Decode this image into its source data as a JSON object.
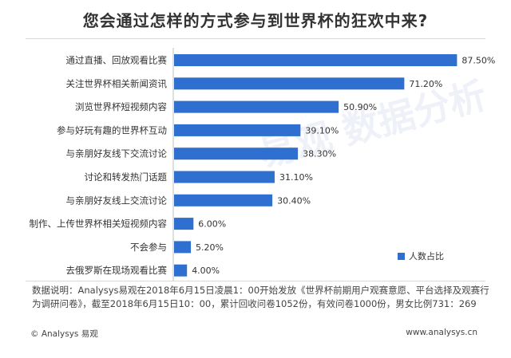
{
  "title": "您会通过怎样的方式参与到世界杯的狂欢中来?",
  "chart_data": {
    "type": "bar",
    "orientation": "horizontal",
    "categories": [
      "通过直播、回放观看比赛",
      "关注世界杯相关新闻资讯",
      "浏览世界杯短视频内容",
      "参与好玩有趣的世界杯互动",
      "与亲朋好友线下交流讨论",
      "讨论和转发热门话题",
      "与亲朋好友线上交流讨论",
      "制作、上传世界杯相关短视频内容",
      "不会参与",
      "去俄罗斯在现场观看比赛"
    ],
    "series": [
      {
        "name": "人数占比",
        "values": [
          87.5,
          71.2,
          50.9,
          39.1,
          38.3,
          31.1,
          30.4,
          6.0,
          5.2,
          4.0
        ],
        "labels": [
          "87.50%",
          "71.20%",
          "50.90%",
          "39.10%",
          "38.30%",
          "31.10%",
          "30.40%",
          "6.00%",
          "5.20%",
          "4.00%"
        ]
      }
    ],
    "xlim": [
      0,
      100
    ],
    "grid": false,
    "legend_position": "right",
    "bar_color": "#2e6fd0"
  },
  "legend": {
    "label": "人数占比"
  },
  "note": "数据说明：Analysys易观在2018年6月15日凌晨1：00开始发放《世界杯前期用户观赛意愿、平台选择及观赛行为调研问卷》，截至2018年6月15日10：00，累计回收问卷1052份，有效问卷1000份，男女比例731：269",
  "footer": {
    "left": "© Analysys 易观",
    "right": "www.analysys.cn"
  },
  "watermark": "易观 数据分析"
}
